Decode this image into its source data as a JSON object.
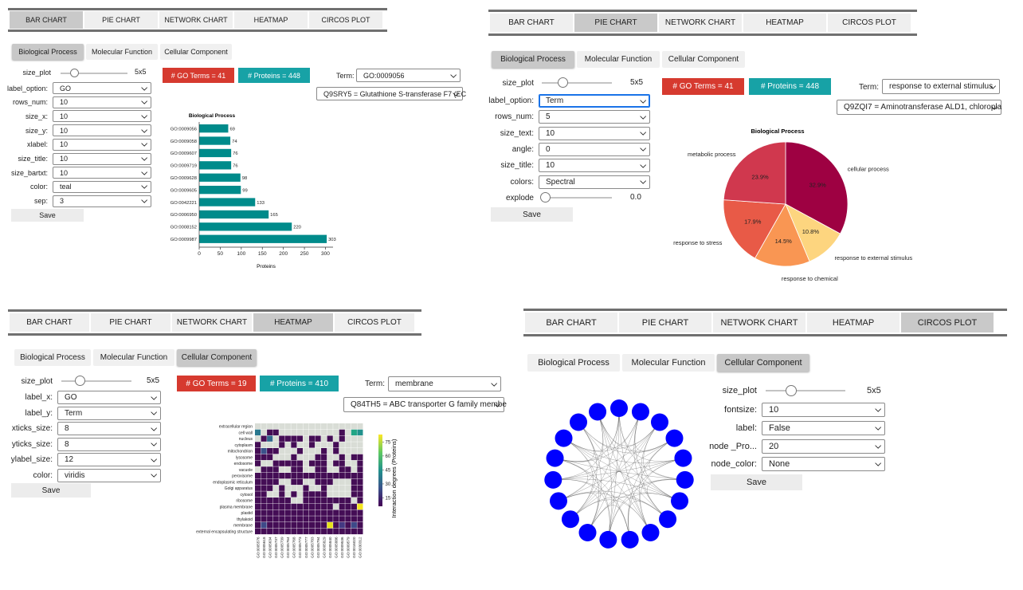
{
  "tabs": [
    "BAR CHART",
    "PIE CHART",
    "NETWORK CHART",
    "HEATMAP",
    "CIRCOS PLOT"
  ],
  "subtabs": [
    "Biological Process",
    "Molecular Function",
    "Cellular Component"
  ],
  "save_label": "Save",
  "term_label": "Term:",
  "size_plot_label": "size_plot",
  "bar_panel": {
    "active_tab": "BAR CHART",
    "active_subtab": "Biological Process",
    "size_plot_value": "5x5",
    "controls": [
      {
        "label": "label_option:",
        "value": "GO"
      },
      {
        "label": "rows_num:",
        "value": "10"
      },
      {
        "label": "size_x:",
        "value": "10"
      },
      {
        "label": "size_y:",
        "value": "10"
      },
      {
        "label": "xlabel:",
        "value": "10"
      },
      {
        "label": "size_title:",
        "value": "10"
      },
      {
        "label": "size_bartxt:",
        "value": "10"
      },
      {
        "label": "color:",
        "value": "teal"
      },
      {
        "label": "sep:",
        "value": "3"
      }
    ],
    "go_terms_badge": "# GO Terms = 41",
    "proteins_badge": "# Proteins = 448",
    "term_value": "GO:0009056",
    "protein_value": "Q9SRY5 = Glutathione S-transferase F7 (EC",
    "chart_data": {
      "type": "bar",
      "orientation": "horizontal",
      "title": "Biological Process",
      "xlabel": "Proteins",
      "categories": [
        "GO:0009056",
        "GO:0009058",
        "GO:0009607",
        "GO:0009719",
        "GO:0009628",
        "GO:0009605",
        "GO:0042221",
        "GO:0006950",
        "GO:0008152",
        "GO:0009987"
      ],
      "values": [
        69,
        74,
        76,
        76,
        98,
        99,
        133,
        165,
        220,
        303
      ],
      "xticks": [
        0,
        50,
        100,
        150,
        200,
        250,
        300
      ],
      "xlim": [
        0,
        318
      ],
      "color": "#008b8b"
    }
  },
  "pie_panel": {
    "active_tab": "PIE CHART",
    "active_subtab": "Biological Process",
    "size_plot_value": "5x5",
    "controls": [
      {
        "label": "label_option:",
        "value": "Term"
      },
      {
        "label": "rows_num:",
        "value": "5"
      },
      {
        "label": "size_text:",
        "value": "10"
      },
      {
        "label": "angle:",
        "value": "0"
      },
      {
        "label": "size_title:",
        "value": "10"
      },
      {
        "label": "colors:",
        "value": "Spectral"
      }
    ],
    "explode_label": "explode",
    "explode_value": "0.0",
    "go_terms_badge": "# GO Terms = 41",
    "proteins_badge": "# Proteins = 448",
    "term_value": "response to external stimulus",
    "protein_value": "Q9ZQI7 = Aminotransferase ALD1, chloropla",
    "chart_data": {
      "type": "pie",
      "title": "Biological Process",
      "labels": [
        "cellular process",
        "response to external stimulus",
        "response to chemical",
        "response to stress",
        "metabolic process"
      ],
      "values": [
        32.9,
        10.8,
        14.5,
        17.9,
        23.9
      ],
      "value_labels": [
        "32.9%",
        "10.8%",
        "14.5%",
        "17.9%",
        "23.9%"
      ],
      "colors": [
        "#9e0142",
        "#fdd57f",
        "#f99653",
        "#e85a47",
        "#d0384e"
      ]
    }
  },
  "heatmap_panel": {
    "active_tab": "HEATMAP",
    "active_subtab": "Cellular Component",
    "size_plot_value": "5x5",
    "controls": [
      {
        "label": "label_x:",
        "value": "GO"
      },
      {
        "label": "label_y:",
        "value": "Term"
      },
      {
        "label": "xticks_size:",
        "value": "8"
      },
      {
        "label": "yticks_size:",
        "value": "8"
      },
      {
        "label": "ylabel_size:",
        "value": "12"
      },
      {
        "label": "color:",
        "value": "viridis"
      }
    ],
    "go_terms_badge": "# GO Terms = 19",
    "proteins_badge": "# Proteins = 410",
    "term_value": "membrane",
    "protein_value": "Q84TH5 = ABC transporter G family membe",
    "chart_data": {
      "type": "heatmap",
      "rows": [
        "extracellular region",
        "cell wall",
        "nucleus",
        "cytoplasm",
        "mitochondrion",
        "lysosome",
        "endosome",
        "vacuole",
        "peroxisome",
        "endoplasmic reticulum",
        "Golgi apparatus",
        "cytosol",
        "ribosome",
        "plasma membrane",
        "plastid",
        "thylakoid",
        "membrane",
        "external encapsulating structure"
      ],
      "columns": [
        "GO:0005576",
        "GO:0005618",
        "GO:0005634",
        "GO:0005737",
        "GO:0005739",
        "GO:0005764",
        "GO:0005768",
        "GO:0005773",
        "GO:0005777",
        "GO:0005783",
        "GO:0005794",
        "GO:0005829",
        "GO:0005840",
        "GO:0005886",
        "GO:0009536",
        "GO:0009579",
        "GO:0016020",
        "GO:0030312"
      ],
      "colorbar_label": "Interaction degrees (Proteins)",
      "colorbar_ticks": [
        15,
        30,
        45,
        60,
        75
      ],
      "colormap": "viridis"
    }
  },
  "circos_panel": {
    "active_tab": "CIRCOS PLOT",
    "active_subtab": "Cellular Component",
    "size_plot_value": "5x5",
    "controls": [
      {
        "label": "fontsize:",
        "value": "10"
      },
      {
        "label": "label:",
        "value": "False"
      },
      {
        "label": "node _Pro...",
        "value": "20"
      },
      {
        "label": "node_color:",
        "value": "None"
      }
    ],
    "chart_data": {
      "type": "network",
      "layout": "circular",
      "node_count": 19,
      "node_color": "#0000ff",
      "edge_color": "#555555"
    }
  }
}
